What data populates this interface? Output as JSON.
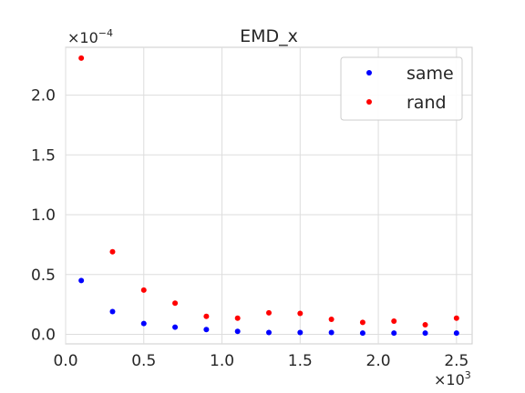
{
  "chart_data": {
    "type": "scatter",
    "title": "EMD_x",
    "xlabel": "",
    "ylabel": "",
    "x_multiplier_label": "×10^3",
    "y_multiplier_label": "×10^−4",
    "xlim": [
      0,
      2.6
    ],
    "ylim": [
      -0.08,
      2.4
    ],
    "x_ticks": [
      0.0,
      0.5,
      1.0,
      1.5,
      2.0,
      2.5
    ],
    "x_tick_labels": [
      "0.0",
      "0.5",
      "1.0",
      "1.5",
      "2.0",
      "2.5"
    ],
    "y_ticks": [
      0.0,
      0.5,
      1.0,
      1.5,
      2.0
    ],
    "y_tick_labels": [
      "0.0",
      "0.5",
      "1.0",
      "1.5",
      "2.0"
    ],
    "grid": true,
    "legend_position": "top-right",
    "x": [
      0.1,
      0.3,
      0.5,
      0.7,
      0.9,
      1.1,
      1.3,
      1.5,
      1.7,
      1.9,
      2.1,
      2.3,
      2.5
    ],
    "series": [
      {
        "name": "same",
        "color": "#0000ff",
        "values": [
          0.45,
          0.19,
          0.09,
          0.06,
          0.04,
          0.025,
          0.015,
          0.015,
          0.015,
          0.01,
          0.01,
          0.01,
          0.01
        ]
      },
      {
        "name": "rand",
        "color": "#ff0000",
        "values": [
          2.31,
          0.69,
          0.37,
          0.26,
          0.15,
          0.135,
          0.18,
          0.175,
          0.125,
          0.1,
          0.11,
          0.08,
          0.135
        ]
      }
    ]
  }
}
